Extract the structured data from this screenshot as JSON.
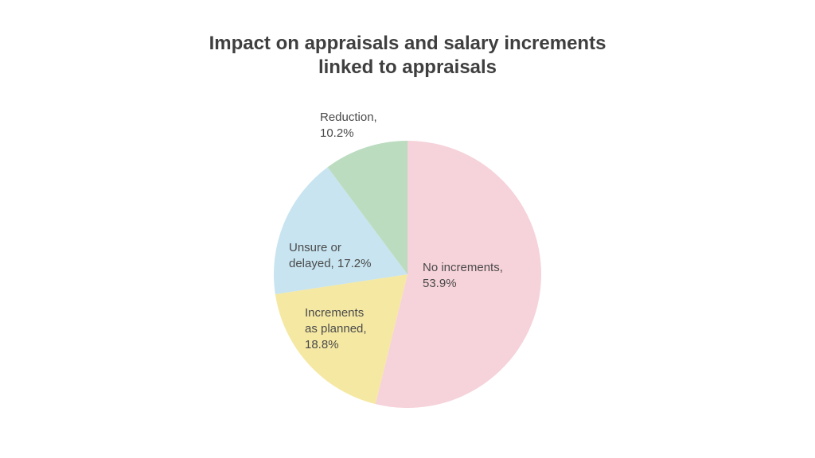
{
  "chart_data": {
    "type": "pie",
    "title": [
      "Impact on appraisals and salary increments",
      "linked to appraisals"
    ],
    "start_angle_deg": 0,
    "direction": "clockwise",
    "slices": [
      {
        "label_lines": [
          "No increments,",
          "53.9%"
        ],
        "category": "No increments",
        "value": 53.9,
        "color": "#f6d2da"
      },
      {
        "label_lines": [
          "Increments",
          "as planned,",
          "18.8%"
        ],
        "category": "Increments as planned",
        "value": 18.8,
        "color": "#f5e8a3"
      },
      {
        "label_lines": [
          "Unsure or",
          "delayed, 17.2%"
        ],
        "category": "Unsure or delayed",
        "value": 17.2,
        "color": "#c7e4f0"
      },
      {
        "label_lines": [
          "Reduction,",
          "10.2%"
        ],
        "category": "Reduction",
        "value": 10.2,
        "color": "#bcdcc0"
      }
    ],
    "legend": "none",
    "value_unit": "%"
  }
}
